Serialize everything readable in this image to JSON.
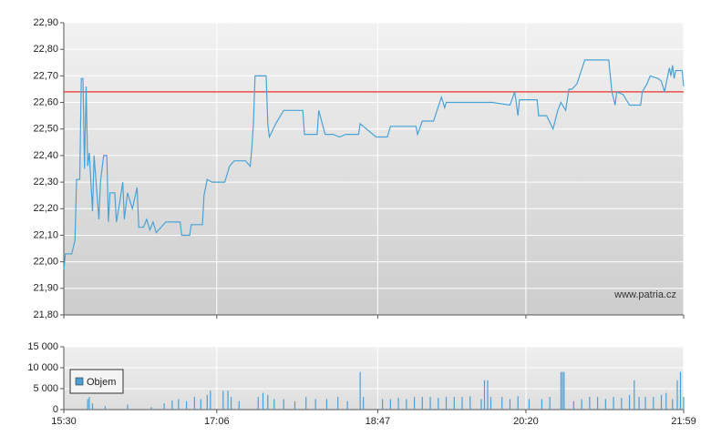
{
  "chart_data": [
    {
      "type": "line",
      "x": [
        "15:30",
        "15:31",
        "15:35",
        "15:37",
        "15:38",
        "15:40",
        "15:41",
        "15:42",
        "15:43",
        "15:44",
        "15:45",
        "15:46",
        "15:48",
        "15:49",
        "15:52",
        "15:53",
        "15:55",
        "15:57",
        "15:58",
        "15:59",
        "16:02",
        "16:03",
        "16:05",
        "16:07",
        "16:08",
        "16:10",
        "16:13",
        "16:16",
        "16:17",
        "16:20",
        "16:22",
        "16:24",
        "16:26",
        "16:28",
        "16:34",
        "16:43",
        "16:44",
        "16:49",
        "16:50",
        "16:57",
        "16:58",
        "17:00",
        "17:03",
        "17:11",
        "17:14",
        "17:17",
        "17:24",
        "17:27",
        "17:28",
        "17:29",
        "17:30",
        "17:37",
        "17:38",
        "17:39",
        "17:43",
        "17:48",
        "18:00",
        "18:01",
        "18:09",
        "18:10",
        "18:14",
        "18:19",
        "18:23",
        "18:27",
        "18:35",
        "18:36",
        "18:46",
        "18:53",
        "18:55",
        "19:11",
        "19:12",
        "19:15",
        "19:22",
        "19:27",
        "19:29",
        "19:30",
        "19:59",
        "20:10",
        "20:13",
        "20:15",
        "20:16",
        "20:27",
        "20:28",
        "20:33",
        "20:37",
        "20:40",
        "20:42",
        "20:45",
        "20:47",
        "20:49",
        "20:52",
        "20:57",
        "21:12",
        "21:14",
        "21:16",
        "21:17",
        "21:21",
        "21:25",
        "21:32",
        "21:33",
        "21:36",
        "21:38",
        "21:43",
        "21:45",
        "21:47",
        "21:50",
        "21:51",
        "21:52",
        "21:53",
        "21:54",
        "21:58",
        "21:59"
      ],
      "series": [
        {
          "color": "#4aa3d6",
          "values": [
            21.97,
            22.03,
            22.03,
            22.08,
            22.31,
            22.31,
            22.69,
            22.69,
            22.35,
            22.66,
            22.36,
            22.41,
            22.19,
            22.4,
            22.16,
            22.3,
            22.4,
            22.4,
            22.15,
            22.26,
            22.26,
            22.15,
            22.22,
            22.3,
            22.16,
            22.26,
            22.2,
            22.28,
            22.13,
            22.13,
            22.16,
            22.12,
            22.15,
            22.11,
            22.15,
            22.15,
            22.1,
            22.1,
            22.14,
            22.14,
            22.25,
            22.31,
            22.3,
            22.3,
            22.36,
            22.38,
            22.38,
            22.36,
            22.43,
            22.52,
            22.7,
            22.7,
            22.52,
            22.47,
            22.52,
            22.57,
            22.57,
            22.48,
            22.48,
            22.57,
            22.48,
            22.48,
            22.47,
            22.48,
            22.48,
            22.52,
            22.47,
            22.47,
            22.51,
            22.51,
            22.48,
            22.53,
            22.53,
            22.62,
            22.58,
            22.6,
            22.6,
            22.59,
            22.64,
            22.55,
            22.61,
            22.61,
            22.55,
            22.55,
            22.5,
            22.57,
            22.6,
            22.57,
            22.65,
            22.65,
            22.67,
            22.76,
            22.76,
            22.64,
            22.59,
            22.64,
            22.63,
            22.59,
            22.59,
            22.64,
            22.67,
            22.7,
            22.69,
            22.68,
            22.64,
            22.73,
            22.7,
            22.74,
            22.69,
            22.72,
            22.72,
            22.66
          ]
        }
      ],
      "reference_line": 22.64,
      "reference_color": "#e8504c",
      "xlim": [
        "15:30",
        "21:59"
      ],
      "ylim": [
        21.8,
        22.9
      ],
      "yticks": [
        {
          "value": 21.8,
          "label": "21,80"
        },
        {
          "value": 21.9,
          "label": "21,90"
        },
        {
          "value": 22.0,
          "label": "22,00"
        },
        {
          "value": 22.1,
          "label": "22,10"
        },
        {
          "value": 22.2,
          "label": "22,20"
        },
        {
          "value": 22.3,
          "label": "22,30"
        },
        {
          "value": 22.4,
          "label": "22,40"
        },
        {
          "value": 22.5,
          "label": "22,50"
        },
        {
          "value": 22.6,
          "label": "22,60"
        },
        {
          "value": 22.7,
          "label": "22,70"
        },
        {
          "value": 22.8,
          "label": "22,80"
        },
        {
          "value": 22.9,
          "label": "22,90"
        }
      ],
      "grid": true,
      "watermark": "www.patria.cz"
    },
    {
      "type": "bar",
      "x": [
        "15:45",
        "15:46",
        "15:48",
        "15:56",
        "16:10",
        "16:25",
        "16:33",
        "16:38",
        "16:42",
        "16:47",
        "16:52",
        "16:56",
        "17:00",
        "17:02",
        "17:10",
        "17:13",
        "17:15",
        "17:20",
        "17:32",
        "17:35",
        "17:38",
        "17:42",
        "17:48",
        "17:55",
        "18:02",
        "18:08",
        "18:15",
        "18:22",
        "18:28",
        "18:36",
        "18:38",
        "18:50",
        "18:55",
        "19:00",
        "19:05",
        "19:10",
        "19:15",
        "19:20",
        "19:25",
        "19:30",
        "19:35",
        "19:40",
        "19:45",
        "19:52",
        "19:54",
        "19:56",
        "19:58",
        "20:05",
        "20:10",
        "20:15",
        "20:22",
        "20:30",
        "20:35",
        "20:42",
        "20:43",
        "20:44",
        "20:50",
        "20:55",
        "21:00",
        "21:05",
        "21:10",
        "21:15",
        "21:20",
        "21:25",
        "21:28",
        "21:31",
        "21:35",
        "21:40",
        "21:45",
        "21:48",
        "21:52",
        "21:55",
        "21:57",
        "21:59"
      ],
      "series": [
        {
          "name": "Objem",
          "color": "#4a9fd4",
          "values": [
            2500,
            3000,
            1500,
            800,
            1200,
            600,
            1500,
            2200,
            2500,
            2000,
            3000,
            2500,
            3500,
            4500,
            4500,
            4500,
            3000,
            2000,
            3000,
            4000,
            3500,
            2500,
            2500,
            2000,
            3000,
            2500,
            2500,
            3000,
            2000,
            9000,
            3000,
            2500,
            2500,
            2800,
            2500,
            3000,
            3000,
            3000,
            2800,
            3000,
            3000,
            3000,
            3200,
            2500,
            7000,
            7000,
            3000,
            3000,
            2500,
            3200,
            2500,
            2500,
            3000,
            9000,
            9000,
            9000,
            2000,
            2500,
            3000,
            3000,
            2500,
            3000,
            2800,
            3500,
            7000,
            3000,
            3000,
            3000,
            3500,
            4000,
            2500,
            7000,
            9000,
            3000
          ]
        }
      ],
      "xlim": [
        "15:30",
        "21:59"
      ],
      "xticks": [
        "15:30",
        "17:06",
        "18:47",
        "20:20",
        "21:59"
      ],
      "ylim": [
        0,
        15000
      ],
      "yticks": [
        0,
        {
          "value": 5000,
          "label": "5 000"
        },
        {
          "value": 10000,
          "label": "10 000"
        },
        {
          "value": 15000,
          "label": "15 000"
        }
      ],
      "grid": true
    }
  ]
}
